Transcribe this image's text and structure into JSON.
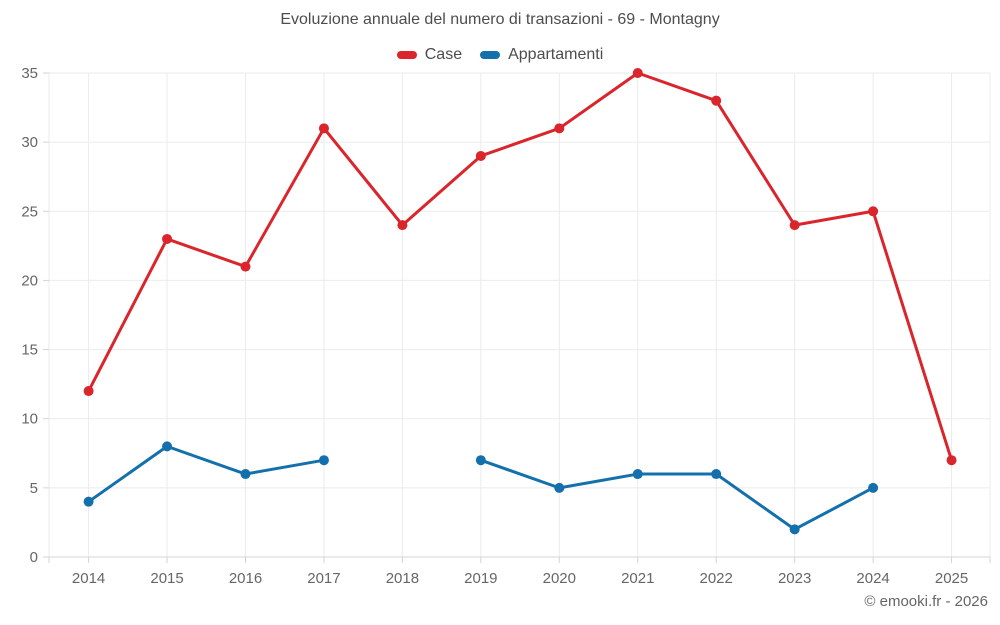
{
  "chart_data": {
    "type": "line",
    "title": "Evoluzione annuale del numero di transazioni - 69 - Montagny",
    "categories": [
      "2014",
      "2015",
      "2016",
      "2017",
      "2018",
      "2019",
      "2020",
      "2021",
      "2022",
      "2023",
      "2024",
      "2025"
    ],
    "series": [
      {
        "name": "Case",
        "color": "#d9252b",
        "values": [
          12,
          23,
          21,
          31,
          24,
          29,
          31,
          35,
          33,
          24,
          25,
          7
        ]
      },
      {
        "name": "Appartamenti",
        "color": "#1470ad",
        "values": [
          4,
          8,
          6,
          7,
          null,
          7,
          5,
          6,
          6,
          2,
          5,
          null
        ]
      }
    ],
    "xlabel": "",
    "ylabel": "",
    "ylim": [
      0,
      35
    ],
    "yticks": [
      0,
      5,
      10,
      15,
      20,
      25,
      30,
      35
    ],
    "grid": true,
    "legend_position": "top",
    "grid_color": "#ebebeb",
    "tick_color": "#d4d4d4"
  },
  "footer": {
    "attribution": "© emooki.fr - 2026"
  }
}
